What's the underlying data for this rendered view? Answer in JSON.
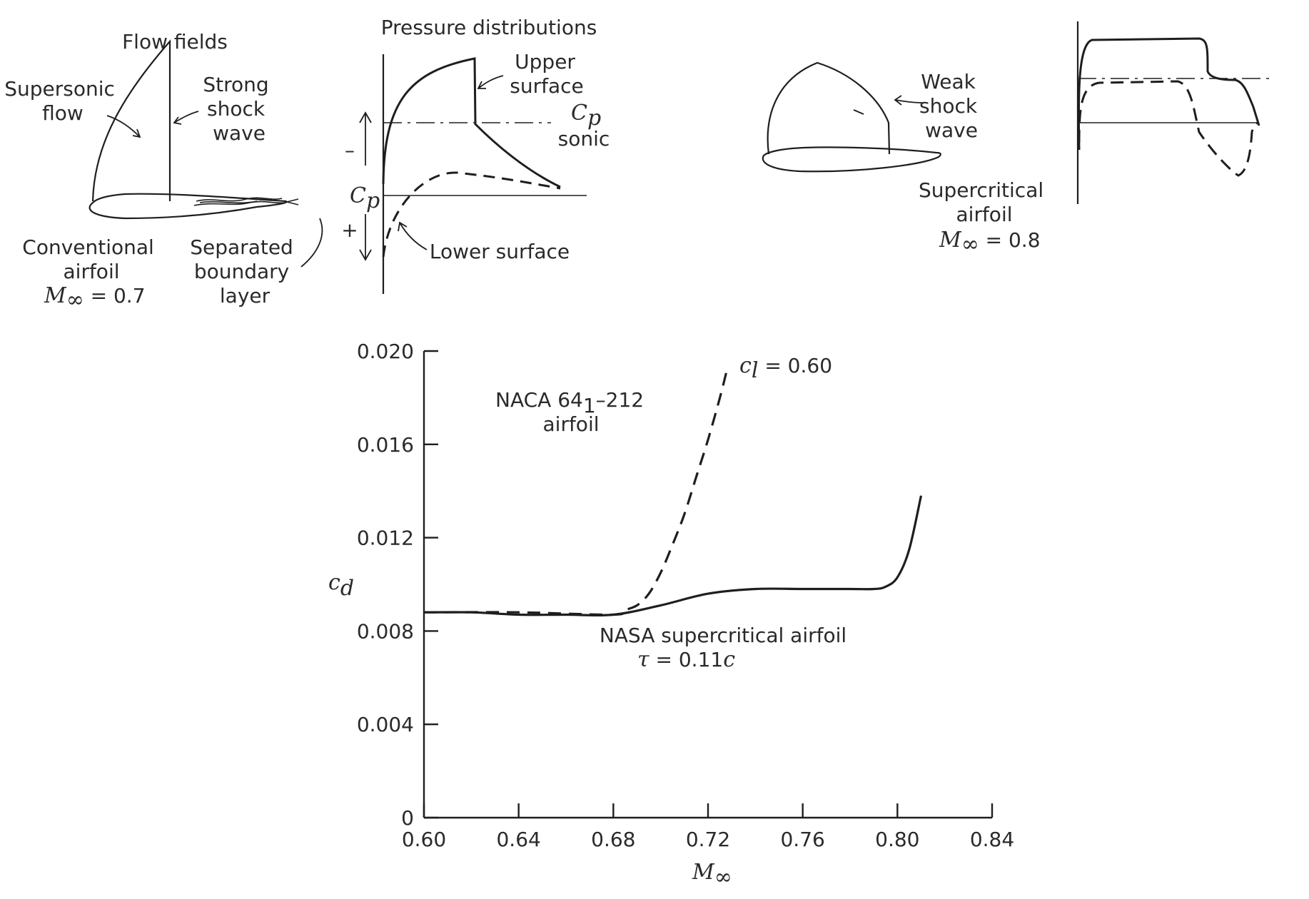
{
  "sketches": {
    "flow_fields_title": "Flow fields",
    "pressure_title": "Pressure distributions",
    "supersonic": [
      "Supersonic",
      "flow"
    ],
    "strong_shock": [
      "Strong",
      "shock",
      "wave"
    ],
    "conventional": [
      "Conventional",
      "airfoil"
    ],
    "conventional_mach_symbol": "M",
    "conventional_mach_sub": "∞",
    "conventional_mach_value": " = 0.7",
    "separated": [
      "Separated",
      "boundary",
      "layer"
    ],
    "upper_surface": [
      "Upper",
      "surface"
    ],
    "lower_surface": "Lower surface",
    "cp_symbol": "C",
    "cp_sub": "p",
    "cp_sonic": "sonic",
    "minus_sign": "–",
    "plus_sign": "+",
    "weak_shock": [
      "Weak",
      "shock",
      "wave"
    ],
    "supercritical": [
      "Supercritical",
      "airfoil"
    ],
    "supercritical_mach_symbol": "M",
    "supercritical_mach_sub": "∞",
    "supercritical_mach_value": " = 0.8"
  },
  "chart_data": {
    "type": "line",
    "xlabel_symbol": "M",
    "xlabel_sub": "∞",
    "ylabel_symbol": "c",
    "ylabel_sub": "d",
    "xlim": [
      0.6,
      0.84
    ],
    "ylim": [
      0,
      0.02
    ],
    "x_ticks": [
      "0.60",
      "0.64",
      "0.68",
      "0.72",
      "0.76",
      "0.80",
      "0.84"
    ],
    "y_ticks": [
      "0",
      "0.004",
      "0.008",
      "0.012",
      "0.016",
      "0.020"
    ],
    "grid": false,
    "series": [
      {
        "name": "NACA 64₁–212 airfoil",
        "style": "dashed",
        "x": [
          0.6,
          0.64,
          0.68,
          0.685,
          0.69,
          0.695,
          0.7,
          0.705,
          0.71,
          0.715,
          0.72,
          0.725,
          0.728
        ],
        "y": [
          0.0088,
          0.0088,
          0.0087,
          0.0089,
          0.0091,
          0.0096,
          0.0105,
          0.0117,
          0.013,
          0.0146,
          0.0162,
          0.018,
          0.0192
        ]
      },
      {
        "name": "NASA supercritical airfoil",
        "style": "solid",
        "x": [
          0.6,
          0.62,
          0.64,
          0.66,
          0.68,
          0.7,
          0.72,
          0.74,
          0.76,
          0.78,
          0.79,
          0.795,
          0.8,
          0.805,
          0.81
        ],
        "y": [
          0.0088,
          0.0088,
          0.0087,
          0.0087,
          0.0087,
          0.0091,
          0.0096,
          0.0098,
          0.0098,
          0.0098,
          0.0098,
          0.0099,
          0.0103,
          0.0115,
          0.0138
        ]
      }
    ],
    "annotations": {
      "naca_label_a": "NACA 64",
      "naca_label_sub": "1",
      "naca_label_b": "–212",
      "naca_label_line2": "airfoil",
      "cl_symbol": "c",
      "cl_sub": "l",
      "cl_value": " = 0.60",
      "nasa_label": "NASA supercritical airfoil",
      "tau_symbol": "τ",
      "tau_value": " = 0.11",
      "tau_c": "c"
    }
  }
}
